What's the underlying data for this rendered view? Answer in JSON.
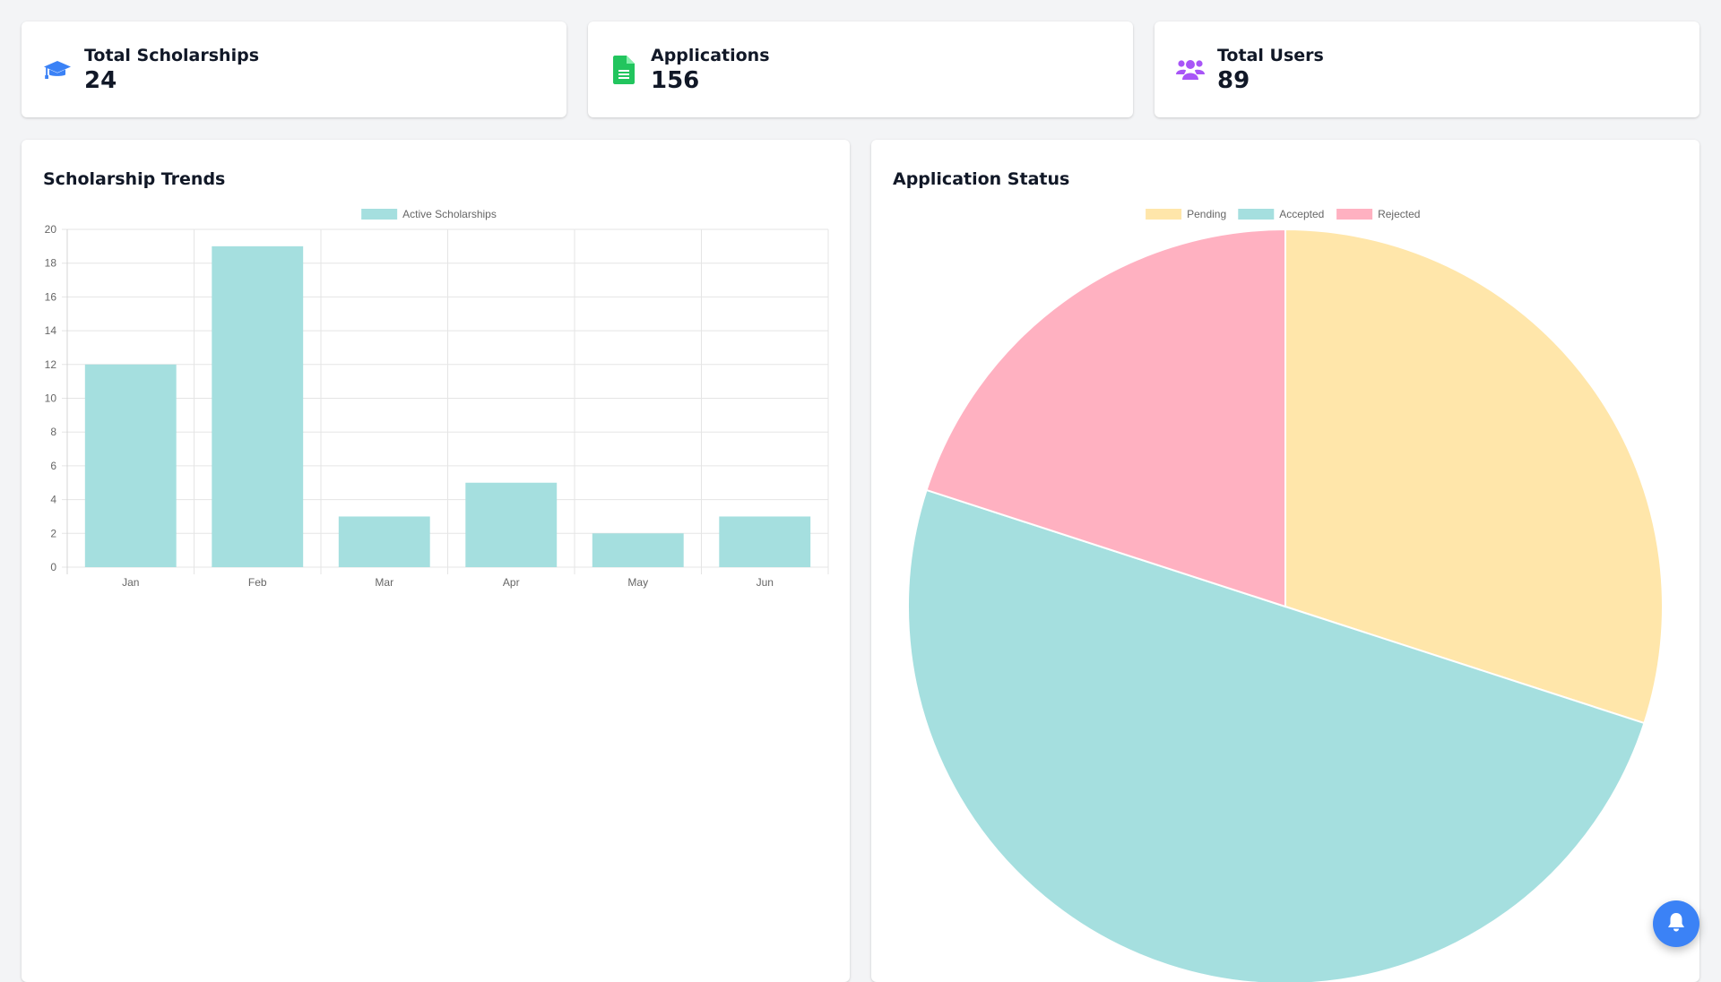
{
  "stats": [
    {
      "label": "Total Scholarships",
      "value": "24",
      "icon": "graduation-cap-icon",
      "color": "#3b82f6"
    },
    {
      "label": "Applications",
      "value": "156",
      "icon": "file-icon",
      "color": "#22c55e"
    },
    {
      "label": "Total Users",
      "value": "89",
      "icon": "users-icon",
      "color": "#a855f7"
    }
  ],
  "panels": {
    "trends_title": "Scholarship Trends",
    "status_title": "Application Status"
  },
  "notification": {
    "icon": "bell-icon",
    "color": "#3b82f6"
  },
  "chart_data": [
    {
      "type": "bar",
      "categories": [
        "Jan",
        "Feb",
        "Mar",
        "Apr",
        "May",
        "Jun"
      ],
      "series": [
        {
          "name": "Active Scholarships",
          "values": [
            12,
            19,
            3,
            5,
            2,
            3
          ],
          "color": "#a5dfdf"
        }
      ],
      "ylim": [
        0,
        20
      ],
      "yticks": [
        0,
        2,
        4,
        6,
        8,
        10,
        12,
        14,
        16,
        18,
        20
      ],
      "grid": true,
      "legend": "top"
    },
    {
      "type": "pie",
      "labels": [
        "Pending",
        "Accepted",
        "Rejected"
      ],
      "values": [
        30,
        50,
        20
      ],
      "colors": [
        "#ffe6aa",
        "#a5dfdf",
        "#ffb1c1"
      ],
      "legend": "top"
    }
  ]
}
